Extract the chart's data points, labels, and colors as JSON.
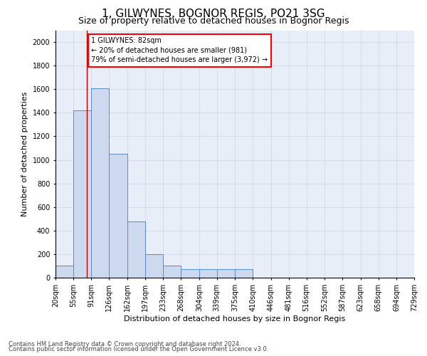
{
  "title": "1, GILWYNES, BOGNOR REGIS, PO21 3SG",
  "subtitle": "Size of property relative to detached houses in Bognor Regis",
  "xlabel": "Distribution of detached houses by size in Bognor Regis",
  "ylabel": "Number of detached properties",
  "footnote1": "Contains HM Land Registry data © Crown copyright and database right 2024.",
  "footnote2": "Contains public sector information licensed under the Open Government Licence v3.0.",
  "bin_edges": [
    20,
    55,
    91,
    126,
    162,
    197,
    233,
    268,
    304,
    339,
    375,
    410,
    446,
    481,
    516,
    552,
    587,
    623,
    658,
    694,
    729
  ],
  "bar_heights": [
    100,
    1420,
    1610,
    1050,
    475,
    200,
    105,
    75,
    75,
    75,
    75,
    0,
    0,
    0,
    0,
    0,
    0,
    0,
    0,
    0
  ],
  "bar_color": "#ccd9ee",
  "bar_edge_color": "#5b8ac5",
  "vline_x": 82,
  "vline_color": "#cc0000",
  "ylim": [
    0,
    2100
  ],
  "yticks": [
    0,
    200,
    400,
    600,
    800,
    1000,
    1200,
    1400,
    1600,
    1800,
    2000
  ],
  "annotation_text": "1 GILWYNES: 82sqm\n← 20% of detached houses are smaller (981)\n79% of semi-detached houses are larger (3,972) →",
  "grid_color": "#d0d8e8",
  "bg_color": "#e8eef8",
  "title_fontsize": 11,
  "subtitle_fontsize": 9,
  "xlabel_fontsize": 8,
  "ylabel_fontsize": 8,
  "tick_fontsize": 7,
  "annot_fontsize": 7,
  "footnote_fontsize": 6
}
